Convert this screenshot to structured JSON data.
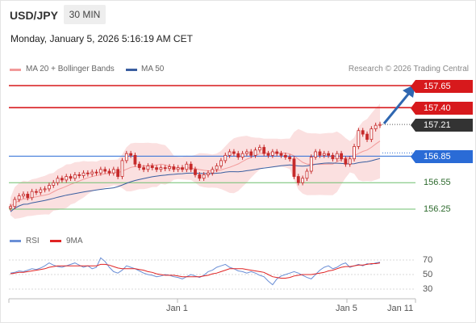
{
  "header": {
    "symbol": "USD/JPY",
    "timeframe": "30 MIN",
    "datetime": "Monday, January 5, 2026 5:16:19 AM CET"
  },
  "legend": {
    "ma20_label": "MA 20 + Bollinger Bands",
    "ma50_label": "MA 50",
    "copyright": "Research © 2026 Trading Central"
  },
  "levels": {
    "resistance2": "157.65",
    "resistance1": "157.40",
    "last_price": "157.21",
    "pivot": "156.85",
    "support1": "156.55",
    "support2": "156.25"
  },
  "rsi_legend": {
    "rsi_label": "RSI",
    "ma_label": "9MA"
  },
  "rsi_axis": [
    "70",
    "50",
    "30"
  ],
  "x_axis": [
    "Jan 1",
    "Jan 5",
    "Jan 11"
  ],
  "colors": {
    "resistance": "#d7191c",
    "pivot": "#2a6bd6",
    "support": "#6fbf6f",
    "ma50": "#3a5ea0",
    "bollinger": "#f7c6c6",
    "candle": "#c62b2b",
    "rsi": "#6b8fd6",
    "rsi_ma": "#e02424",
    "arrow": "#2f67b1"
  },
  "chart_data": {
    "type": "candlestick",
    "series_labels": [
      "MA 20 + Bollinger Bands",
      "MA 50"
    ],
    "price_levels": {
      "resistance": [
        157.65,
        157.4
      ],
      "pivot": 156.85,
      "support": [
        156.55,
        156.25
      ],
      "last": 157.21
    },
    "close": [
      156.28,
      156.36,
      156.4,
      156.42,
      156.38,
      156.45,
      156.44,
      156.47,
      156.48,
      156.52,
      156.55,
      156.6,
      156.58,
      156.62,
      156.6,
      156.64,
      156.63,
      156.66,
      156.65,
      156.67,
      156.66,
      156.7,
      156.68,
      156.66,
      156.7,
      156.62,
      156.8,
      156.88,
      156.86,
      156.76,
      156.72,
      156.7,
      156.74,
      156.72,
      156.7,
      156.72,
      156.71,
      156.73,
      156.7,
      156.72,
      156.7,
      156.76,
      156.7,
      156.64,
      156.6,
      156.64,
      156.66,
      156.7,
      156.74,
      156.8,
      156.86,
      156.9,
      156.88,
      156.84,
      156.88,
      156.9,
      156.86,
      156.92,
      156.95,
      156.88,
      156.86,
      156.9,
      156.88,
      156.86,
      156.84,
      156.82,
      156.62,
      156.55,
      156.6,
      156.68,
      156.84,
      156.9,
      156.86,
      156.88,
      156.86,
      156.82,
      156.88,
      156.82,
      156.76,
      156.82,
      156.96,
      157.14,
      157.1,
      157.04,
      157.16,
      157.2,
      157.21
    ],
    "rsi": [
      52,
      53,
      55,
      54,
      56,
      58,
      57,
      59,
      62,
      66,
      63,
      61,
      60,
      62,
      64,
      66,
      63,
      60,
      62,
      58,
      60,
      73,
      68,
      60,
      54,
      52,
      56,
      62,
      60,
      58,
      55,
      52,
      50,
      49,
      47,
      48,
      50,
      49,
      47,
      46,
      44,
      47,
      50,
      48,
      46,
      49,
      54,
      56,
      60,
      62,
      64,
      60,
      58,
      55,
      54,
      52,
      54,
      52,
      49,
      47,
      41,
      36,
      44,
      48,
      50,
      52,
      54,
      52,
      49,
      46,
      44,
      50,
      56,
      60,
      62,
      58,
      60,
      64,
      66,
      60,
      62,
      64,
      62,
      65,
      64,
      66,
      67
    ],
    "rsi_ma": [
      51,
      52,
      53,
      53,
      54,
      55,
      56,
      57,
      58,
      60,
      61,
      62,
      62,
      62,
      62,
      62,
      62,
      62,
      62,
      62,
      62,
      64,
      64,
      63,
      61,
      59,
      58,
      58,
      58,
      58,
      57,
      56,
      54,
      53,
      51,
      50,
      49,
      49,
      49,
      48,
      47,
      47,
      47,
      47,
      47,
      48,
      49,
      51,
      52,
      54,
      56,
      58,
      58,
      58,
      58,
      57,
      56,
      55,
      54,
      53,
      50,
      47,
      46,
      45,
      45,
      46,
      48,
      49,
      50,
      50,
      50,
      51,
      52,
      53,
      55,
      56,
      58,
      60,
      61,
      61,
      62,
      63,
      63,
      64,
      65,
      65,
      66
    ],
    "rsi_levels": [
      70,
      50,
      30
    ],
    "x_ticks": [
      "Jan 1",
      "Jan 5",
      "Jan 11"
    ],
    "ylim": [
      156.2,
      157.75
    ]
  }
}
